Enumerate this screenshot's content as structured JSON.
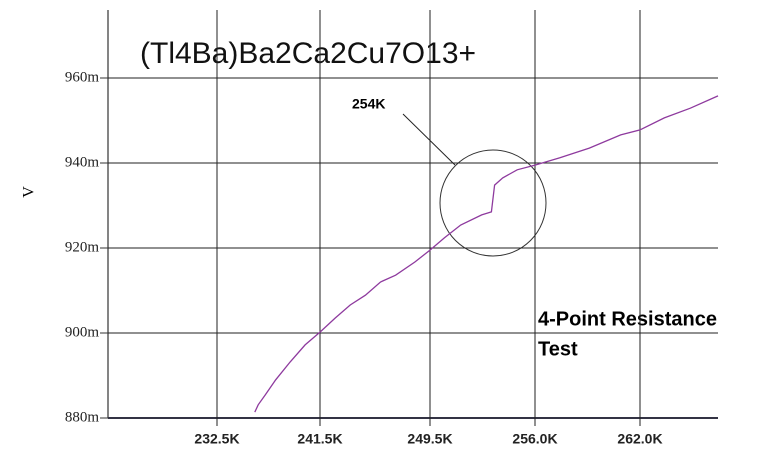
{
  "chart_data": {
    "type": "line",
    "title": "(Tl4Ba)Ba2Ca2Cu7O13+",
    "y_label": "V",
    "annotations": [
      {
        "text": "254K"
      },
      {
        "lines": [
          "4-Point Resistance",
          "Test"
        ]
      }
    ],
    "series": [
      {
        "color": "#8e3a9e",
        "x": [
          235.8,
          236.1,
          236.7,
          237.6,
          238.9,
          240.2,
          241.5,
          242.6,
          243.7,
          244.8,
          245.9,
          247.0,
          248.4,
          249.5,
          250.4,
          251.4,
          252.7,
          253.3,
          253.5,
          254.0,
          254.9,
          256.0,
          257.4,
          259.1,
          260.9,
          262.0,
          263.4,
          264.9,
          266.5
        ],
        "values": [
          0.8814,
          0.8831,
          0.8854,
          0.8889,
          0.8932,
          0.8972,
          0.9002,
          0.9035,
          0.9066,
          0.9089,
          0.912,
          0.9136,
          0.9167,
          0.9195,
          0.9224,
          0.9254,
          0.9278,
          0.9285,
          0.9348,
          0.9365,
          0.9384,
          0.9395,
          0.9412,
          0.9435,
          0.9466,
          0.9478,
          0.9506,
          0.9529,
          0.9558
        ]
      }
    ],
    "xlim": [
      223.0,
      266.5
    ],
    "xticks": [
      {
        "value": 232.5,
        "label": "232.5K"
      },
      {
        "value": 241.5,
        "label": "241.5K"
      },
      {
        "value": 249.5,
        "label": "249.5K"
      },
      {
        "value": 256.0,
        "label": "256.0K"
      },
      {
        "value": 262.0,
        "label": "262.0K"
      }
    ],
    "ylim": [
      0.88,
      0.976
    ],
    "yticks": [
      {
        "value": 0.88,
        "label": "880m"
      },
      {
        "value": 0.9,
        "label": "900m"
      },
      {
        "value": 0.92,
        "label": "920m"
      },
      {
        "value": 0.94,
        "label": "940m"
      },
      {
        "value": 0.96,
        "label": "960m"
      }
    ],
    "grid": true
  }
}
